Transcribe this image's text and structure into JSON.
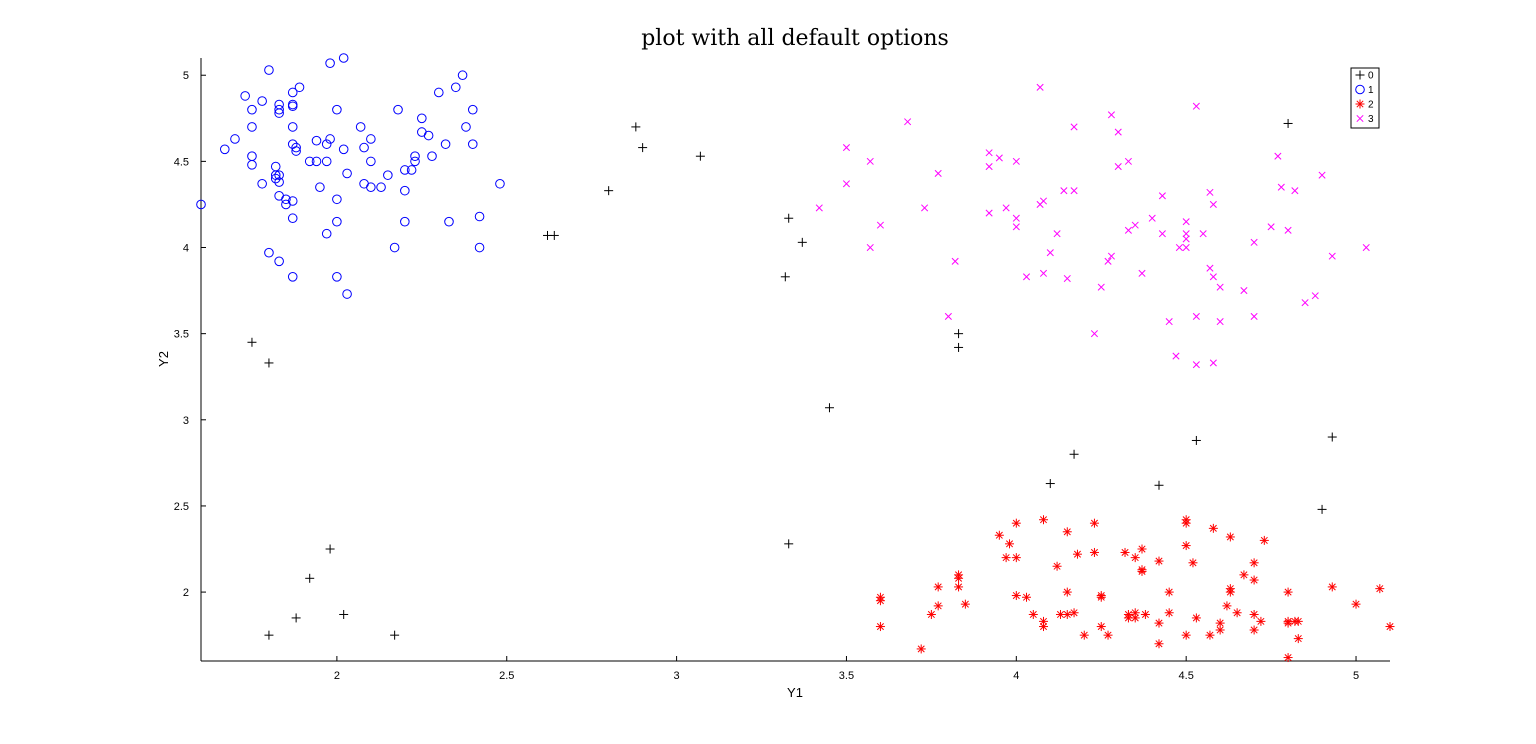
{
  "chart_data": {
    "type": "scatter",
    "title": "plot with all default options",
    "xlabel": "Y1",
    "ylabel": "Y2",
    "xlim": [
      1.6,
      5.1
    ],
    "ylim": [
      1.6,
      5.1
    ],
    "xticks": [
      "2",
      "2.5",
      "3",
      "3.5",
      "4",
      "4.5",
      "5"
    ],
    "yticks": [
      "2",
      "2.5",
      "3",
      "3.5",
      "4",
      "4.5",
      "5"
    ],
    "grid": false,
    "legend_position": "top-right",
    "series": [
      {
        "name": "0",
        "marker": "plus",
        "color": "#000000",
        "points": [
          [
            1.75,
            3.45
          ],
          [
            1.8,
            3.33
          ],
          [
            1.8,
            1.75
          ],
          [
            1.88,
            1.85
          ],
          [
            1.92,
            2.08
          ],
          [
            1.98,
            2.25
          ],
          [
            2.02,
            1.87
          ],
          [
            2.17,
            1.75
          ],
          [
            2.62,
            4.07
          ],
          [
            2.64,
            4.07
          ],
          [
            2.8,
            4.33
          ],
          [
            2.88,
            4.7
          ],
          [
            2.9,
            4.58
          ],
          [
            3.07,
            4.53
          ],
          [
            3.32,
            3.83
          ],
          [
            3.33,
            2.28
          ],
          [
            3.33,
            4.17
          ],
          [
            3.37,
            4.03
          ],
          [
            3.45,
            3.07
          ],
          [
            3.83,
            3.5
          ],
          [
            3.83,
            3.42
          ],
          [
            4.1,
            2.63
          ],
          [
            4.17,
            2.8
          ],
          [
            4.42,
            2.62
          ],
          [
            4.53,
            2.88
          ],
          [
            4.8,
            4.72
          ],
          [
            4.9,
            2.48
          ],
          [
            4.93,
            2.9
          ]
        ]
      },
      {
        "name": "1",
        "marker": "circle",
        "color": "#0000ff",
        "points": [
          [
            1.6,
            4.25
          ],
          [
            1.67,
            4.57
          ],
          [
            1.7,
            4.63
          ],
          [
            1.73,
            4.88
          ],
          [
            1.75,
            4.8
          ],
          [
            1.75,
            4.7
          ],
          [
            1.75,
            4.53
          ],
          [
            1.75,
            4.48
          ],
          [
            1.78,
            4.85
          ],
          [
            1.78,
            4.37
          ],
          [
            1.8,
            5.03
          ],
          [
            1.8,
            3.97
          ],
          [
            1.82,
            4.47
          ],
          [
            1.82,
            4.42
          ],
          [
            1.82,
            4.4
          ],
          [
            1.83,
            4.83
          ],
          [
            1.83,
            4.8
          ],
          [
            1.83,
            4.78
          ],
          [
            1.83,
            4.42
          ],
          [
            1.83,
            4.38
          ],
          [
            1.83,
            4.3
          ],
          [
            1.83,
            3.92
          ],
          [
            1.85,
            4.28
          ],
          [
            1.85,
            4.25
          ],
          [
            1.87,
            4.9
          ],
          [
            1.87,
            4.83
          ],
          [
            1.87,
            4.82
          ],
          [
            1.87,
            4.7
          ],
          [
            1.87,
            4.6
          ],
          [
            1.87,
            4.27
          ],
          [
            1.87,
            4.17
          ],
          [
            1.87,
            3.83
          ],
          [
            1.88,
            4.58
          ],
          [
            1.88,
            4.56
          ],
          [
            1.89,
            4.93
          ],
          [
            1.92,
            4.5
          ],
          [
            1.94,
            4.62
          ],
          [
            1.94,
            4.5
          ],
          [
            1.95,
            4.35
          ],
          [
            1.97,
            4.6
          ],
          [
            1.97,
            4.5
          ],
          [
            1.97,
            4.08
          ],
          [
            1.98,
            5.07
          ],
          [
            1.98,
            4.63
          ],
          [
            2.0,
            4.8
          ],
          [
            2.0,
            4.28
          ],
          [
            2.0,
            4.15
          ],
          [
            2.0,
            3.83
          ],
          [
            2.02,
            5.1
          ],
          [
            2.02,
            4.57
          ],
          [
            2.03,
            4.43
          ],
          [
            2.03,
            3.73
          ],
          [
            2.07,
            4.7
          ],
          [
            2.08,
            4.58
          ],
          [
            2.08,
            4.37
          ],
          [
            2.1,
            4.63
          ],
          [
            2.1,
            4.5
          ],
          [
            2.1,
            4.35
          ],
          [
            2.13,
            4.35
          ],
          [
            2.15,
            4.42
          ],
          [
            2.17,
            4.0
          ],
          [
            2.18,
            4.8
          ],
          [
            2.2,
            4.45
          ],
          [
            2.2,
            4.33
          ],
          [
            2.2,
            4.15
          ],
          [
            2.22,
            4.45
          ],
          [
            2.23,
            4.53
          ],
          [
            2.23,
            4.5
          ],
          [
            2.25,
            4.75
          ],
          [
            2.25,
            4.67
          ],
          [
            2.27,
            4.65
          ],
          [
            2.28,
            4.53
          ],
          [
            2.3,
            4.9
          ],
          [
            2.32,
            4.6
          ],
          [
            2.33,
            4.15
          ],
          [
            2.35,
            4.93
          ],
          [
            2.37,
            5.0
          ],
          [
            2.38,
            4.7
          ],
          [
            2.4,
            4.8
          ],
          [
            2.4,
            4.6
          ],
          [
            2.42,
            4.18
          ],
          [
            2.42,
            4.0
          ],
          [
            2.48,
            4.37
          ]
        ]
      },
      {
        "name": "2",
        "marker": "star",
        "color": "#ff0000",
        "points": [
          [
            3.6,
            1.97
          ],
          [
            3.6,
            1.95
          ],
          [
            3.6,
            1.8
          ],
          [
            3.72,
            1.67
          ],
          [
            3.75,
            1.87
          ],
          [
            3.77,
            2.03
          ],
          [
            3.77,
            1.92
          ],
          [
            3.83,
            2.1
          ],
          [
            3.83,
            2.08
          ],
          [
            3.83,
            2.03
          ],
          [
            3.85,
            1.93
          ],
          [
            3.95,
            2.33
          ],
          [
            3.97,
            2.2
          ],
          [
            3.98,
            2.28
          ],
          [
            4.0,
            2.4
          ],
          [
            4.0,
            2.2
          ],
          [
            4.0,
            1.98
          ],
          [
            4.03,
            1.97
          ],
          [
            4.05,
            1.87
          ],
          [
            4.08,
            2.42
          ],
          [
            4.08,
            1.83
          ],
          [
            4.08,
            1.8
          ],
          [
            4.12,
            2.15
          ],
          [
            4.13,
            1.87
          ],
          [
            4.15,
            2.35
          ],
          [
            4.15,
            2.0
          ],
          [
            4.15,
            1.87
          ],
          [
            4.17,
            1.88
          ],
          [
            4.18,
            2.22
          ],
          [
            4.2,
            1.75
          ],
          [
            4.23,
            2.4
          ],
          [
            4.23,
            2.23
          ],
          [
            4.25,
            1.98
          ],
          [
            4.25,
            1.97
          ],
          [
            4.25,
            1.8
          ],
          [
            4.27,
            1.75
          ],
          [
            4.32,
            2.23
          ],
          [
            4.33,
            1.87
          ],
          [
            4.33,
            1.85
          ],
          [
            4.35,
            2.2
          ],
          [
            4.35,
            1.88
          ],
          [
            4.35,
            1.85
          ],
          [
            4.37,
            2.25
          ],
          [
            4.37,
            2.13
          ],
          [
            4.37,
            2.12
          ],
          [
            4.38,
            1.87
          ],
          [
            4.42,
            2.18
          ],
          [
            4.42,
            1.82
          ],
          [
            4.42,
            1.7
          ],
          [
            4.45,
            2.0
          ],
          [
            4.45,
            1.88
          ],
          [
            4.5,
            2.42
          ],
          [
            4.5,
            2.4
          ],
          [
            4.5,
            2.27
          ],
          [
            4.5,
            1.75
          ],
          [
            4.52,
            2.17
          ],
          [
            4.53,
            1.85
          ],
          [
            4.57,
            1.75
          ],
          [
            4.58,
            2.37
          ],
          [
            4.6,
            1.82
          ],
          [
            4.6,
            1.78
          ],
          [
            4.62,
            1.92
          ],
          [
            4.63,
            2.32
          ],
          [
            4.63,
            2.02
          ],
          [
            4.63,
            2.0
          ],
          [
            4.65,
            1.88
          ],
          [
            4.67,
            2.1
          ],
          [
            4.7,
            2.17
          ],
          [
            4.7,
            2.07
          ],
          [
            4.7,
            1.87
          ],
          [
            4.7,
            1.78
          ],
          [
            4.72,
            1.83
          ],
          [
            4.73,
            2.3
          ],
          [
            4.8,
            2.0
          ],
          [
            4.8,
            1.83
          ],
          [
            4.8,
            1.82
          ],
          [
            4.8,
            1.62
          ],
          [
            4.82,
            1.83
          ],
          [
            4.83,
            1.83
          ],
          [
            4.83,
            1.73
          ],
          [
            4.93,
            2.03
          ],
          [
            5.0,
            1.93
          ],
          [
            5.07,
            2.02
          ],
          [
            5.1,
            1.8
          ]
        ]
      },
      {
        "name": "3",
        "marker": "x",
        "color": "#ff00ff",
        "points": [
          [
            3.42,
            4.23
          ],
          [
            3.5,
            4.58
          ],
          [
            3.5,
            4.37
          ],
          [
            3.57,
            4.5
          ],
          [
            3.57,
            4.0
          ],
          [
            3.6,
            4.13
          ],
          [
            3.68,
            4.73
          ],
          [
            3.73,
            4.23
          ],
          [
            3.77,
            4.43
          ],
          [
            3.8,
            3.6
          ],
          [
            3.82,
            3.92
          ],
          [
            3.92,
            4.55
          ],
          [
            3.92,
            4.47
          ],
          [
            3.92,
            4.2
          ],
          [
            3.95,
            4.52
          ],
          [
            3.97,
            4.23
          ],
          [
            4.0,
            4.5
          ],
          [
            4.0,
            4.17
          ],
          [
            4.0,
            4.12
          ],
          [
            4.03,
            3.83
          ],
          [
            4.07,
            4.93
          ],
          [
            4.07,
            4.25
          ],
          [
            4.08,
            4.27
          ],
          [
            4.08,
            3.85
          ],
          [
            4.1,
            3.97
          ],
          [
            4.12,
            4.08
          ],
          [
            4.14,
            4.33
          ],
          [
            4.15,
            3.82
          ],
          [
            4.17,
            4.7
          ],
          [
            4.17,
            4.33
          ],
          [
            4.23,
            3.5
          ],
          [
            4.25,
            3.77
          ],
          [
            4.27,
            3.92
          ],
          [
            4.28,
            4.77
          ],
          [
            4.28,
            3.95
          ],
          [
            4.3,
            4.67
          ],
          [
            4.3,
            4.47
          ],
          [
            4.33,
            4.5
          ],
          [
            4.33,
            4.1
          ],
          [
            4.35,
            4.13
          ],
          [
            4.37,
            3.85
          ],
          [
            4.4,
            4.17
          ],
          [
            4.43,
            4.3
          ],
          [
            4.43,
            4.08
          ],
          [
            4.45,
            3.57
          ],
          [
            4.47,
            3.37
          ],
          [
            4.48,
            4.0
          ],
          [
            4.5,
            4.15
          ],
          [
            4.5,
            4.08
          ],
          [
            4.5,
            4.05
          ],
          [
            4.5,
            4.0
          ],
          [
            4.53,
            4.82
          ],
          [
            4.53,
            3.6
          ],
          [
            4.53,
            3.32
          ],
          [
            4.55,
            4.08
          ],
          [
            4.57,
            4.32
          ],
          [
            4.57,
            3.88
          ],
          [
            4.58,
            4.25
          ],
          [
            4.58,
            3.83
          ],
          [
            4.58,
            3.33
          ],
          [
            4.6,
            3.77
          ],
          [
            4.6,
            3.57
          ],
          [
            4.67,
            3.75
          ],
          [
            4.7,
            4.03
          ],
          [
            4.7,
            3.6
          ],
          [
            4.75,
            4.12
          ],
          [
            4.77,
            4.53
          ],
          [
            4.78,
            4.35
          ],
          [
            4.8,
            4.1
          ],
          [
            4.82,
            4.33
          ],
          [
            4.85,
            3.68
          ],
          [
            4.88,
            3.72
          ],
          [
            4.9,
            4.42
          ],
          [
            4.93,
            3.95
          ],
          [
            5.03,
            4.0
          ]
        ]
      }
    ]
  }
}
